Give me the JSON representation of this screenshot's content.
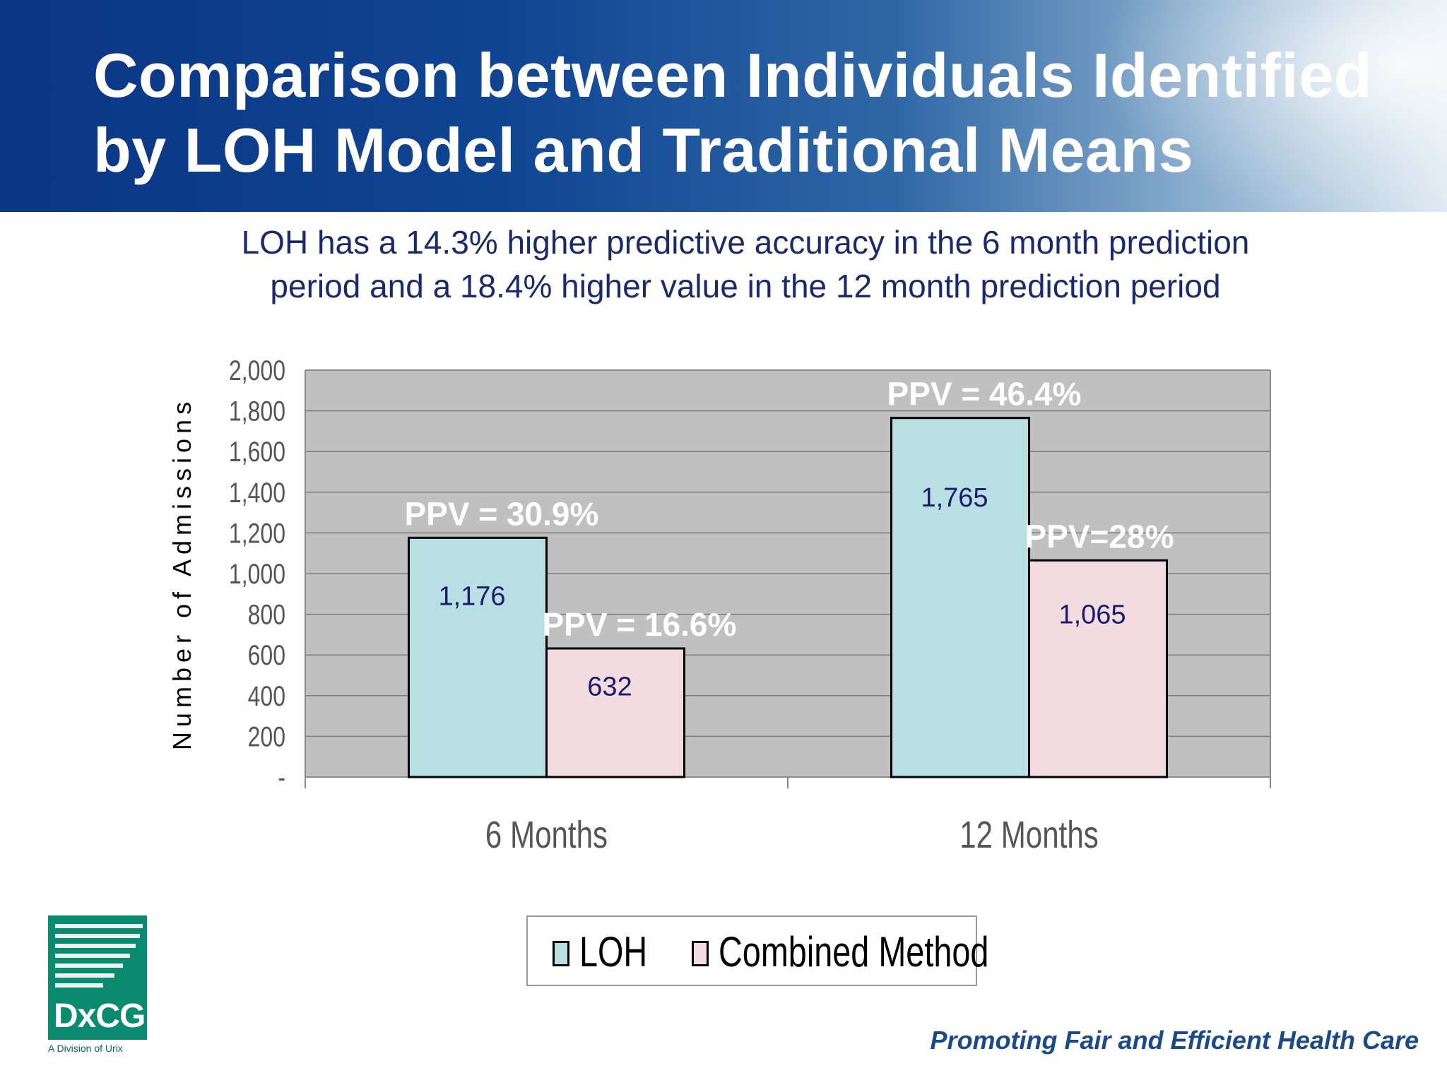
{
  "slide": {
    "title_line1": "Comparison between Individuals Identified",
    "title_line2": "by LOH Model and Traditional Means",
    "subtitle_line1": "LOH has a 14.3%  higher predictive accuracy in the 6 month prediction",
    "subtitle_line2": "period and a 18.4% higher value in the 12 month prediction period",
    "tagline": "Promoting Fair and Efficient Health Care",
    "logo_text": "DxCG",
    "logo_subtext": "A Division of Urix"
  },
  "colors": {
    "header_blue": "#0b3585",
    "loh": "#b8e0e2",
    "combined": "#f2dcdf",
    "plot_bg": "#c0c0c0",
    "value_label": "#1a1a6e",
    "ppv_label": "#ffffff"
  },
  "chart_data": {
    "type": "bar",
    "categories": [
      "6 Months",
      "12 Months"
    ],
    "series": [
      {
        "name": "LOH",
        "values": [
          1176,
          1765
        ]
      },
      {
        "name": "Combined Method",
        "values": [
          632,
          1065
        ]
      }
    ],
    "value_labels": [
      [
        "1,176",
        "1,765"
      ],
      [
        "632",
        "1,065"
      ]
    ],
    "ppv_labels": [
      [
        "PPV = 30.9%",
        "PPV = 46.4%"
      ],
      [
        "PPV = 16.6%",
        "PPV=28%"
      ]
    ],
    "ylabel": "Number of Admissions",
    "ylim": [
      0,
      2000
    ],
    "yticks": [
      0,
      200,
      400,
      600,
      800,
      1000,
      1200,
      1400,
      1600,
      1800,
      2000
    ],
    "ytick_labels": [
      "-",
      "200",
      "400",
      "600",
      "800",
      "1,000",
      "1,200",
      "1,400",
      "1,600",
      "1,800",
      "2,000"
    ],
    "grid": true,
    "legend": "bottom"
  }
}
